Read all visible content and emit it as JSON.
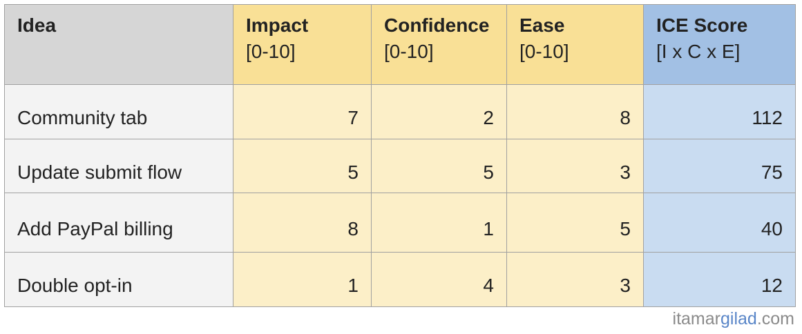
{
  "table": {
    "columns": [
      {
        "title": "Idea"
      },
      {
        "title": "Impact",
        "subtitle": "[0-10]"
      },
      {
        "title": "Confidence",
        "subtitle": "[0-10]"
      },
      {
        "title": "Ease",
        "subtitle": "[0-10]"
      },
      {
        "title": "ICE Score",
        "subtitle": "[I x C x E]"
      }
    ],
    "rows": [
      [
        "Community tab",
        7,
        2,
        8,
        112
      ],
      [
        "Update submit flow",
        5,
        5,
        3,
        75
      ],
      [
        "Add PayPal billing",
        8,
        1,
        5,
        40
      ],
      [
        "Double opt-in",
        1,
        4,
        3,
        12
      ]
    ]
  },
  "footer": {
    "parts": [
      "itamar",
      "gilad",
      ".com"
    ]
  }
}
